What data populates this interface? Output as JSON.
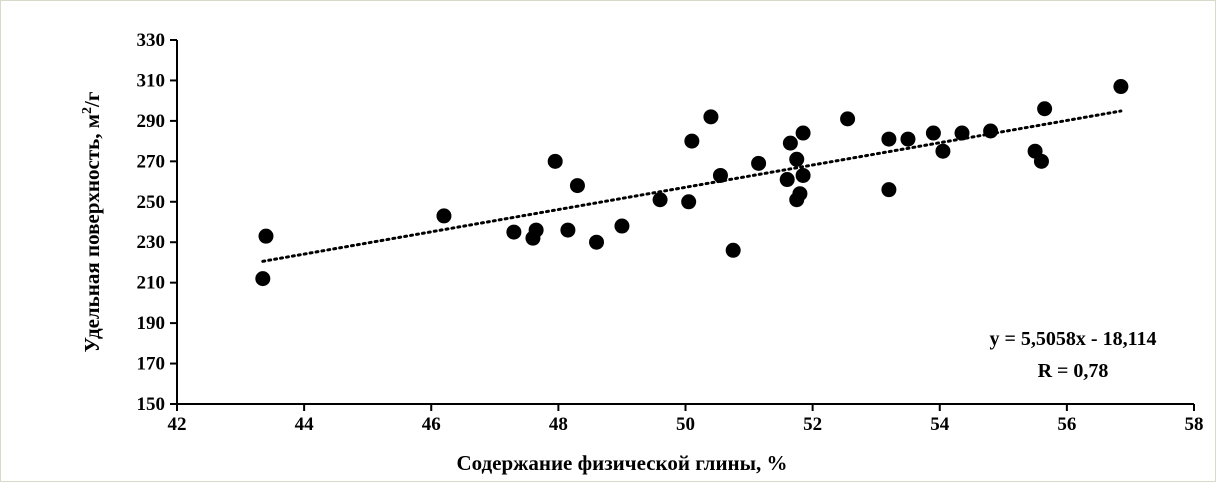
{
  "chart_data": {
    "type": "scatter",
    "xlabel": "Содержание физической глины, %",
    "ylabel_main": "Удельная поверхность, м",
    "ylabel_sup": "2",
    "ylabel_tail": "/г",
    "xlim": [
      42,
      58
    ],
    "ylim": [
      150,
      330
    ],
    "xticks": [
      42,
      44,
      46,
      48,
      50,
      52,
      54,
      56,
      58
    ],
    "yticks": [
      150,
      170,
      190,
      210,
      230,
      250,
      270,
      290,
      310,
      330
    ],
    "grid": false,
    "legend": "none",
    "point_color": "#000000",
    "trendline": {
      "style": "dotted",
      "slope": 5.5058,
      "intercept": -18.114,
      "x_range": [
        43.35,
        56.85
      ],
      "equation": "y = 5,5058x - 18,114",
      "r_label": "R = 0,78"
    },
    "points": [
      {
        "x": 43.35,
        "y": 212
      },
      {
        "x": 43.4,
        "y": 233
      },
      {
        "x": 46.2,
        "y": 243
      },
      {
        "x": 47.3,
        "y": 235
      },
      {
        "x": 47.6,
        "y": 232
      },
      {
        "x": 47.65,
        "y": 236
      },
      {
        "x": 47.95,
        "y": 270
      },
      {
        "x": 48.15,
        "y": 236
      },
      {
        "x": 48.3,
        "y": 258
      },
      {
        "x": 48.6,
        "y": 230
      },
      {
        "x": 49.0,
        "y": 238
      },
      {
        "x": 49.6,
        "y": 251
      },
      {
        "x": 50.05,
        "y": 250
      },
      {
        "x": 50.1,
        "y": 280
      },
      {
        "x": 50.4,
        "y": 292
      },
      {
        "x": 50.55,
        "y": 263
      },
      {
        "x": 50.75,
        "y": 226
      },
      {
        "x": 51.15,
        "y": 269
      },
      {
        "x": 51.6,
        "y": 261
      },
      {
        "x": 51.65,
        "y": 279
      },
      {
        "x": 51.75,
        "y": 271
      },
      {
        "x": 51.75,
        "y": 251
      },
      {
        "x": 51.8,
        "y": 254
      },
      {
        "x": 51.85,
        "y": 284
      },
      {
        "x": 51.85,
        "y": 263
      },
      {
        "x": 52.55,
        "y": 291
      },
      {
        "x": 53.2,
        "y": 281
      },
      {
        "x": 53.2,
        "y": 256
      },
      {
        "x": 53.5,
        "y": 281
      },
      {
        "x": 53.9,
        "y": 284
      },
      {
        "x": 54.05,
        "y": 275
      },
      {
        "x": 54.35,
        "y": 284
      },
      {
        "x": 54.8,
        "y": 285
      },
      {
        "x": 55.5,
        "y": 275
      },
      {
        "x": 55.6,
        "y": 270
      },
      {
        "x": 55.65,
        "y": 296
      },
      {
        "x": 56.85,
        "y": 307
      }
    ]
  }
}
